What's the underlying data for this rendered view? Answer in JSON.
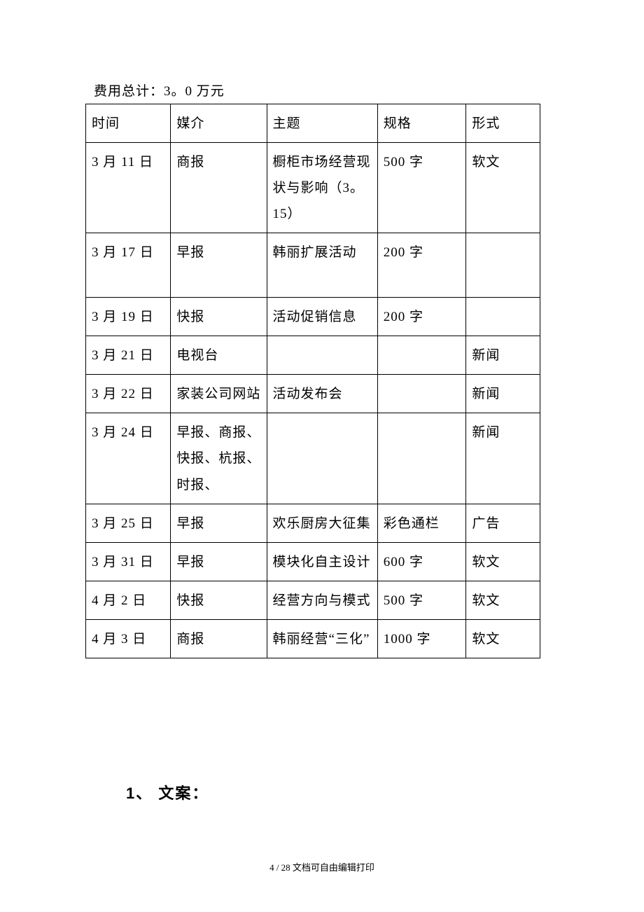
{
  "cost_line": "费用总计：3。0 万元",
  "columns": [
    "时间",
    "媒介",
    "主题",
    "规格",
    "形式"
  ],
  "rows": [
    [
      "3 月 11 日",
      "商报",
      "橱柜市场经营现状与影响（3。15）",
      " 500 字",
      "软文"
    ],
    [
      " 3 月 17 日",
      "早报",
      "韩丽扩展活动",
      "200 字",
      ""
    ],
    [
      "3 月 19 日",
      " 快报",
      "活动促销信息",
      "200 字",
      ""
    ],
    [
      "3 月 21 日",
      "电视台",
      "",
      "",
      "新闻"
    ],
    [
      "3 月 22 日",
      "家装公司网站",
      "活动发布会",
      "",
      "新闻"
    ],
    [
      "3 月 24 日",
      "早报、商报、快报、杭报、时报、",
      "",
      "",
      "新闻"
    ],
    [
      "3 月 25 日",
      "早报",
      "欢乐厨房大征集",
      "彩色通栏",
      "广告"
    ],
    [
      "3 月 31 日",
      "早报",
      "模块化自主设计",
      "600 字",
      "软文"
    ],
    [
      "4 月 2 日",
      "快报",
      "经营方向与模式",
      "500 字",
      "软文"
    ],
    [
      "4 月 3 日",
      "商报",
      "韩丽经营“三化”",
      "1000 字",
      "软文"
    ]
  ],
  "row1_extra_lines": 1,
  "section_heading": "1、  文案：",
  "footer": "4 / 28 文档可自由编辑打印",
  "col_classes": [
    "col-time",
    "col-media",
    "col-topic",
    "col-spec",
    "col-form"
  ]
}
